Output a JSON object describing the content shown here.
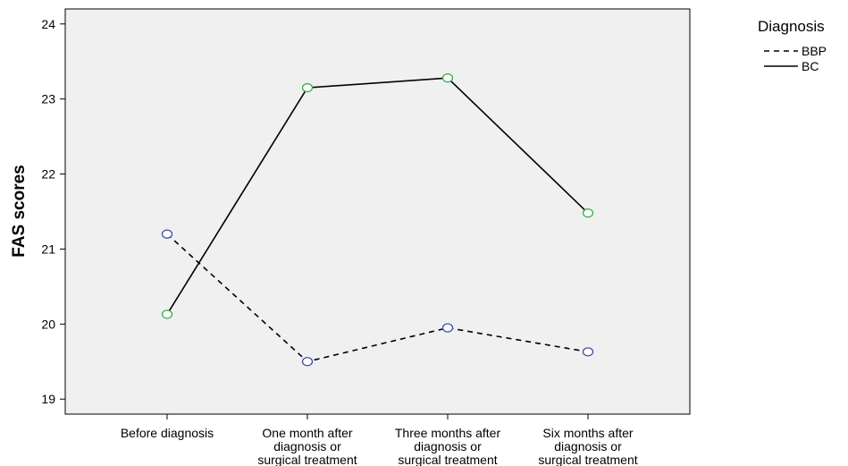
{
  "chart_data": {
    "type": "line",
    "title": "",
    "xlabel": "",
    "ylabel": "FAS scores",
    "categories": [
      [
        "Before diagnosis"
      ],
      [
        "One month after",
        "diagnosis or",
        "surgical treatment"
      ],
      [
        "Three months after",
        "diagnosis or",
        "surgical treatment"
      ],
      [
        "Six months after",
        "diagnosis or",
        "surgical treatment"
      ]
    ],
    "ylim": [
      18.8,
      24.2
    ],
    "yticks": [
      19,
      20,
      21,
      22,
      23,
      24
    ],
    "grid": false,
    "legend": {
      "title": "Diagnosis",
      "placement": "top-right, outside plot"
    },
    "series": [
      {
        "name": "BBP",
        "values": [
          21.2,
          19.5,
          19.95,
          19.63
        ],
        "line_style": "dashed",
        "marker_color": "#3f4fa6"
      },
      {
        "name": "BC",
        "values": [
          20.13,
          23.15,
          23.28,
          21.48
        ],
        "line_style": "solid",
        "marker_color": "#33b24a"
      }
    ],
    "colors": {
      "plot_background": "#f0f0f0",
      "line": "#000000"
    }
  }
}
